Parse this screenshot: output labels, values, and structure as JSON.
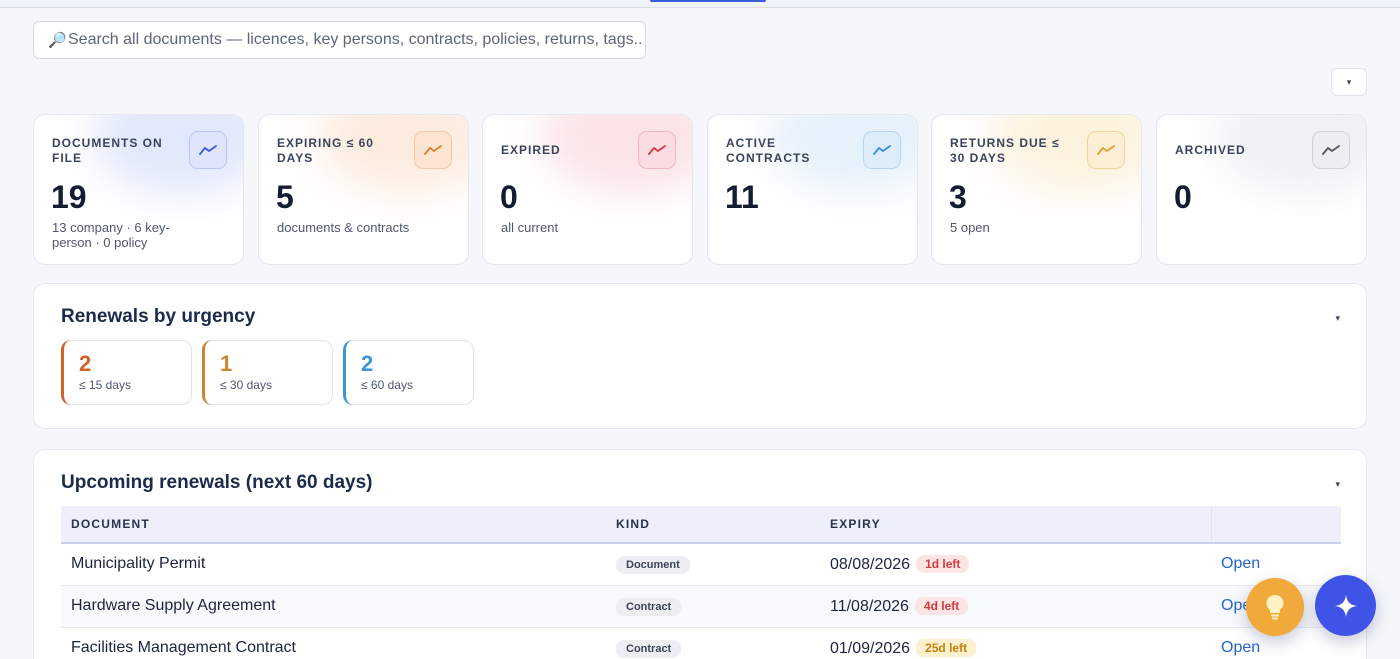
{
  "search": {
    "icon": "magnifier-icon",
    "placeholder": "Search all documents — licences, key persons, contracts, policies, returns, tags.."
  },
  "corner_dropdown": {
    "icon": "caret-down-icon",
    "glyph": "▾"
  },
  "stats": [
    {
      "label": "DOCUMENTS ON FILE",
      "value": "19",
      "sub": "13 company · 6 key-person · 0 policy",
      "icon": "trend-icon",
      "color": "#3b5bd9"
    },
    {
      "label": "EXPIRING ≤ 60 DAYS",
      "value": "5",
      "sub": "documents & contracts",
      "icon": "trend-icon",
      "color": "#d9822b"
    },
    {
      "label": "EXPIRED",
      "value": "0",
      "sub": "all current",
      "icon": "trend-icon",
      "color": "#d33a4a"
    },
    {
      "label": "ACTIVE CONTRACTS",
      "value": "11",
      "sub": "",
      "icon": "trend-icon",
      "color": "#3a8fd9"
    },
    {
      "label": "RETURNS DUE ≤ 30 DAYS",
      "value": "3",
      "sub": "5 open",
      "icon": "trend-icon",
      "color": "#e0a030"
    },
    {
      "label": "ARCHIVED",
      "value": "0",
      "sub": "",
      "icon": "trend-icon",
      "color": "#555b66"
    }
  ],
  "renewals": {
    "title": "Renewals by urgency",
    "caret": "▾",
    "items": [
      {
        "value": "2",
        "label": "≤ 15 days",
        "color": "#d0622b"
      },
      {
        "value": "1",
        "label": "≤ 30 days",
        "color": "#cc8530"
      },
      {
        "value": "2",
        "label": "≤ 60 days",
        "color": "#3d95d6"
      }
    ]
  },
  "upcoming": {
    "title": "Upcoming renewals (next 60 days)",
    "caret": "▾",
    "columns": [
      "DOCUMENT",
      "KIND",
      "EXPIRY",
      ""
    ],
    "rows": [
      {
        "document": "Municipality Permit",
        "kind": "Document",
        "expiry": "08/08/2026",
        "left": "1d left",
        "tone": "red",
        "action": "Open"
      },
      {
        "document": "Hardware Supply Agreement",
        "kind": "Contract",
        "expiry": "11/08/2026",
        "left": "4d left",
        "tone": "red",
        "action": "Open"
      },
      {
        "document": "Facilities Management Contract",
        "kind": "Contract",
        "expiry": "01/09/2026",
        "left": "25d left",
        "tone": "amber",
        "action": "Open"
      }
    ]
  },
  "fabs": [
    {
      "name": "lightbulb-icon",
      "color": "#f0a93a"
    },
    {
      "name": "sparkle-icon",
      "color": "#3f54e6"
    }
  ]
}
